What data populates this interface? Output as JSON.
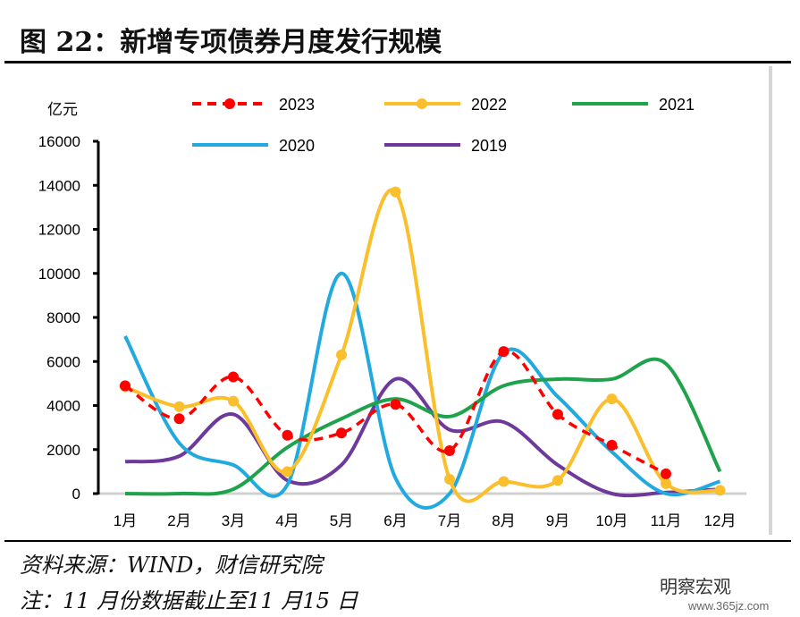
{
  "title": "图 22：新增专项债券月度发行规模",
  "notes": {
    "source": "资料来源：WIND，财信研究院",
    "note": "注：11 月份数据截止至11 月15 日"
  },
  "watermark": {
    "brand": "明察宏观",
    "site": "www.365jz.com"
  },
  "chart_data": {
    "type": "line",
    "title": "新增专项债券月度发行规模",
    "ylabel": "亿元",
    "ylim": [
      0,
      16000
    ],
    "yticks": [
      0,
      2000,
      4000,
      6000,
      8000,
      10000,
      12000,
      14000,
      16000
    ],
    "categories": [
      "1月",
      "2月",
      "3月",
      "4月",
      "5月",
      "6月",
      "7月",
      "8月",
      "9月",
      "10月",
      "11月",
      "12月"
    ],
    "legend_position": "top",
    "series": [
      {
        "name": "2023",
        "color": "#ff0000",
        "dashed": true,
        "markers": true,
        "values": [
          4900,
          3400,
          5300,
          2650,
          2750,
          4050,
          1950,
          6450,
          3600,
          2200,
          900,
          null
        ]
      },
      {
        "name": "2022",
        "color": "#fbbf2b",
        "dashed": false,
        "markers": true,
        "values": [
          4850,
          3950,
          4200,
          1000,
          6300,
          13700,
          650,
          550,
          600,
          4300,
          450,
          150
        ]
      },
      {
        "name": "2021",
        "color": "#1ea24b",
        "dashed": false,
        "markers": false,
        "values": [
          0,
          0,
          200,
          2100,
          3400,
          4300,
          3500,
          4900,
          5200,
          5200,
          5900,
          1000
        ]
      },
      {
        "name": "2020",
        "color": "#22a9e0",
        "dashed": false,
        "markers": false,
        "values": [
          7150,
          2300,
          1300,
          400,
          10000,
          700,
          0,
          6400,
          4400,
          1900,
          0,
          550
        ]
      },
      {
        "name": "2019",
        "color": "#6d3a9c",
        "dashed": false,
        "markers": false,
        "values": [
          1450,
          1700,
          3600,
          600,
          1300,
          5200,
          2900,
          3250,
          1300,
          0,
          50,
          200
        ]
      }
    ]
  }
}
